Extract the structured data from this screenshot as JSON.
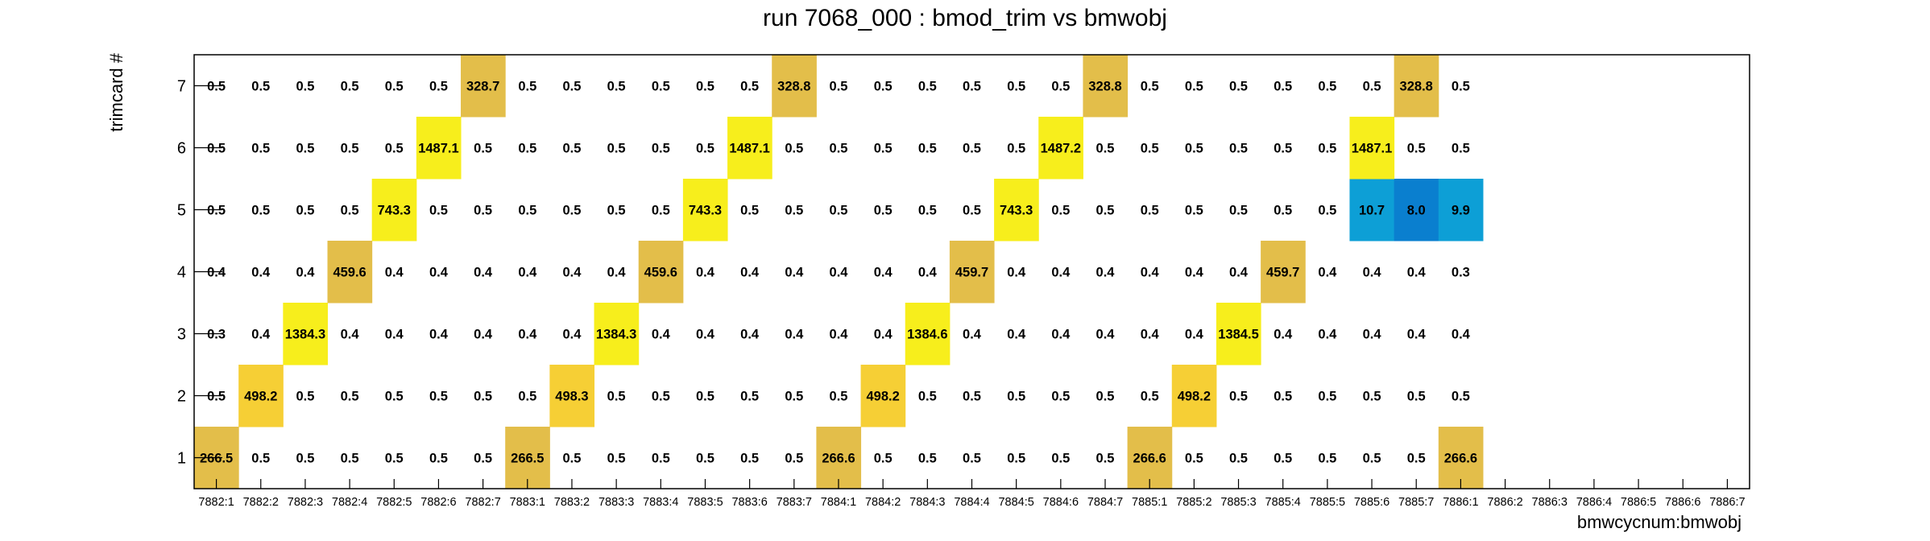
{
  "chart_data": {
    "type": "heatmap",
    "title": "run 7068_000 : bmod_trim vs bmwobj",
    "xlabel": "bmwcycnum:bmwobj",
    "ylabel": "trimcard #",
    "x_categories": [
      "7882:1",
      "7882:2",
      "7882:3",
      "7882:4",
      "7882:5",
      "7882:6",
      "7882:7",
      "7883:1",
      "7883:2",
      "7883:3",
      "7883:4",
      "7883:5",
      "7883:6",
      "7883:7",
      "7884:1",
      "7884:2",
      "7884:3",
      "7884:4",
      "7884:5",
      "7884:6",
      "7884:7",
      "7885:1",
      "7885:2",
      "7885:3",
      "7885:4",
      "7885:5",
      "7885:6",
      "7885:7",
      "7886:1",
      "7886:2",
      "7886:3",
      "7886:4",
      "7886:5",
      "7886:6",
      "7886:7"
    ],
    "y_categories": [
      "1",
      "2",
      "3",
      "4",
      "5",
      "6",
      "7"
    ],
    "values": [
      [
        "266.5",
        "0.5",
        "0.5",
        "0.5",
        "0.5",
        "0.5",
        "0.5",
        "266.5",
        "0.5",
        "0.5",
        "0.5",
        "0.5",
        "0.5",
        "0.5",
        "266.6",
        "0.5",
        "0.5",
        "0.5",
        "0.5",
        "0.5",
        "0.5",
        "266.6",
        "0.5",
        "0.5",
        "0.5",
        "0.5",
        "0.5",
        "0.5",
        "266.6",
        null,
        null,
        null,
        null,
        null,
        null
      ],
      [
        "0.5",
        "498.2",
        "0.5",
        "0.5",
        "0.5",
        "0.5",
        "0.5",
        "0.5",
        "498.3",
        "0.5",
        "0.5",
        "0.5",
        "0.5",
        "0.5",
        "0.5",
        "498.2",
        "0.5",
        "0.5",
        "0.5",
        "0.5",
        "0.5",
        "0.5",
        "498.2",
        "0.5",
        "0.5",
        "0.5",
        "0.5",
        "0.5",
        "0.5",
        null,
        null,
        null,
        null,
        null,
        null
      ],
      [
        "0.3",
        "0.4",
        "1384.3",
        "0.4",
        "0.4",
        "0.4",
        "0.4",
        "0.4",
        "0.4",
        "1384.3",
        "0.4",
        "0.4",
        "0.4",
        "0.4",
        "0.4",
        "0.4",
        "1384.6",
        "0.4",
        "0.4",
        "0.4",
        "0.4",
        "0.4",
        "0.4",
        "1384.5",
        "0.4",
        "0.4",
        "0.4",
        "0.4",
        "0.4",
        null,
        null,
        null,
        null,
        null,
        null
      ],
      [
        "0.4",
        "0.4",
        "0.4",
        "459.6",
        "0.4",
        "0.4",
        "0.4",
        "0.4",
        "0.4",
        "0.4",
        "459.6",
        "0.4",
        "0.4",
        "0.4",
        "0.4",
        "0.4",
        "0.4",
        "459.7",
        "0.4",
        "0.4",
        "0.4",
        "0.4",
        "0.4",
        "0.4",
        "459.7",
        "0.4",
        "0.4",
        "0.4",
        "0.3",
        null,
        null,
        null,
        null,
        null,
        null
      ],
      [
        "0.5",
        "0.5",
        "0.5",
        "0.5",
        "743.3",
        "0.5",
        "0.5",
        "0.5",
        "0.5",
        "0.5",
        "0.5",
        "743.3",
        "0.5",
        "0.5",
        "0.5",
        "0.5",
        "0.5",
        "0.5",
        "743.3",
        "0.5",
        "0.5",
        "0.5",
        "0.5",
        "0.5",
        "0.5",
        "0.5",
        "10.7",
        "8.0",
        "9.9",
        null,
        null,
        null,
        null,
        null,
        null
      ],
      [
        "0.5",
        "0.5",
        "0.5",
        "0.5",
        "0.5",
        "1487.1",
        "0.5",
        "0.5",
        "0.5",
        "0.5",
        "0.5",
        "0.5",
        "1487.1",
        "0.5",
        "0.5",
        "0.5",
        "0.5",
        "0.5",
        "0.5",
        "1487.2",
        "0.5",
        "0.5",
        "0.5",
        "0.5",
        "0.5",
        "0.5",
        "1487.1",
        "0.5",
        "0.5",
        null,
        null,
        null,
        null,
        null,
        null
      ],
      [
        "0.5",
        "0.5",
        "0.5",
        "0.5",
        "0.5",
        "0.5",
        "328.7",
        "0.5",
        "0.5",
        "0.5",
        "0.5",
        "0.5",
        "0.5",
        "328.8",
        "0.5",
        "0.5",
        "0.5",
        "0.5",
        "0.5",
        "0.5",
        "328.8",
        "0.5",
        "0.5",
        "0.5",
        "0.5",
        "0.5",
        "0.5",
        "328.8",
        "0.5",
        null,
        null,
        null,
        null,
        null,
        null
      ]
    ],
    "colors": {
      "tan": "#e3be4a",
      "gold": "#f6cf35",
      "yellow": "#f7ee1c",
      "mid_blue": "#0d9fd6",
      "dark_blue": "#0a7fcf",
      "axis": "#000000",
      "background": "#ffffff"
    },
    "grid": false,
    "legend": "none"
  }
}
